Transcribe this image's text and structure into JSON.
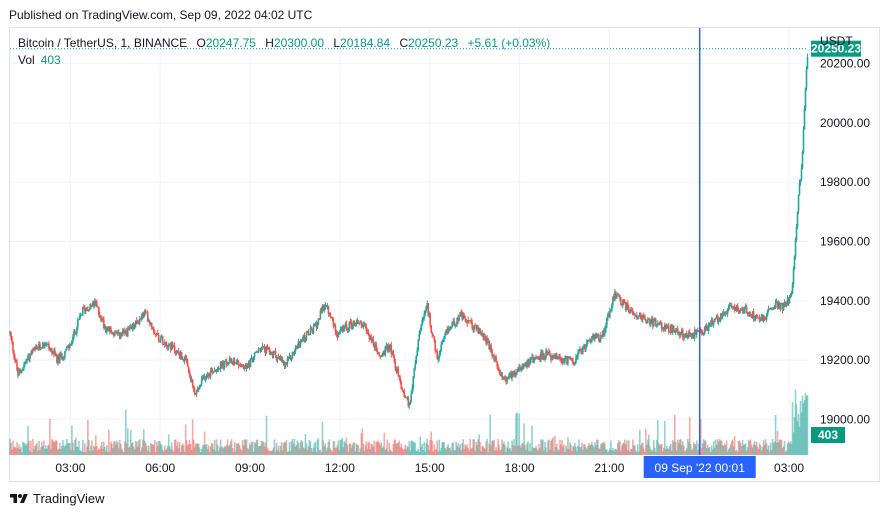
{
  "header": {
    "published": "Published on TradingView.com, Sep 09, 2022 04:02 UTC"
  },
  "legend": {
    "symbol": "Bitcoin / TetherUS, 1, BINANCE",
    "open_label": "O",
    "open": "20247.75",
    "high_label": "H",
    "high": "20300.00",
    "low_label": "L",
    "low": "20184.84",
    "close_label": "C",
    "close": "20250.23",
    "change": "+5.61 (+0.03%)",
    "vol_label": "Vol",
    "vol": "403"
  },
  "currency": "USDT",
  "footer": {
    "brand": "TradingView"
  },
  "colors": {
    "up": "#26a69a",
    "down": "#ef5350",
    "accent": "#089981",
    "crosshair": "#2962ff"
  },
  "chart_data": {
    "type": "candlestick",
    "title": "Bitcoin / TetherUS, 1, BINANCE",
    "ylim": [
      18880,
      20320
    ],
    "y_ticks": [
      19000,
      19200,
      19400,
      19600,
      19800,
      20000,
      20200
    ],
    "y_tick_labels": [
      "19000.00",
      "19200.00",
      "19400.00",
      "19600.00",
      "19800.00",
      "20000.00",
      "20200.00"
    ],
    "x_ticks": [
      {
        "label": "03:00",
        "minute": 180
      },
      {
        "label": "06:00",
        "minute": 360
      },
      {
        "label": "09:00",
        "minute": 540
      },
      {
        "label": "12:00",
        "minute": 720
      },
      {
        "label": "15:00",
        "minute": 900
      },
      {
        "label": "18:00",
        "minute": 1080
      },
      {
        "label": "21:00",
        "minute": 1260
      },
      {
        "label": "03:00",
        "minute": 1620
      }
    ],
    "x_range_minutes": [
      59,
      1658
    ],
    "last_price": 20250.23,
    "last_price_label": "20250.23",
    "last_volume_label": "403",
    "crosshair": {
      "minute": 1441,
      "label_date": "09 Sep '22",
      "label_time": "00:01"
    },
    "price_path": [
      [
        59,
        19290
      ],
      [
        75,
        19150
      ],
      [
        100,
        19220
      ],
      [
        130,
        19260
      ],
      [
        155,
        19200
      ],
      [
        180,
        19250
      ],
      [
        205,
        19370
      ],
      [
        230,
        19390
      ],
      [
        250,
        19310
      ],
      [
        275,
        19280
      ],
      [
        300,
        19300
      ],
      [
        330,
        19360
      ],
      [
        355,
        19280
      ],
      [
        380,
        19250
      ],
      [
        410,
        19200
      ],
      [
        430,
        19080
      ],
      [
        450,
        19150
      ],
      [
        480,
        19180
      ],
      [
        510,
        19200
      ],
      [
        530,
        19170
      ],
      [
        560,
        19240
      ],
      [
        590,
        19220
      ],
      [
        610,
        19180
      ],
      [
        640,
        19260
      ],
      [
        670,
        19310
      ],
      [
        690,
        19390
      ],
      [
        715,
        19290
      ],
      [
        740,
        19320
      ],
      [
        760,
        19330
      ],
      [
        780,
        19280
      ],
      [
        800,
        19210
      ],
      [
        820,
        19250
      ],
      [
        845,
        19100
      ],
      [
        860,
        19050
      ],
      [
        880,
        19300
      ],
      [
        895,
        19380
      ],
      [
        915,
        19200
      ],
      [
        935,
        19300
      ],
      [
        960,
        19350
      ],
      [
        990,
        19310
      ],
      [
        1010,
        19280
      ],
      [
        1030,
        19200
      ],
      [
        1050,
        19130
      ],
      [
        1075,
        19170
      ],
      [
        1100,
        19200
      ],
      [
        1130,
        19220
      ],
      [
        1160,
        19200
      ],
      [
        1190,
        19200
      ],
      [
        1220,
        19270
      ],
      [
        1245,
        19280
      ],
      [
        1270,
        19420
      ],
      [
        1300,
        19370
      ],
      [
        1330,
        19340
      ],
      [
        1360,
        19320
      ],
      [
        1390,
        19300
      ],
      [
        1420,
        19280
      ],
      [
        1450,
        19300
      ],
      [
        1470,
        19330
      ],
      [
        1490,
        19360
      ],
      [
        1510,
        19380
      ],
      [
        1530,
        19370
      ],
      [
        1550,
        19350
      ],
      [
        1570,
        19340
      ],
      [
        1590,
        19390
      ],
      [
        1610,
        19380
      ],
      [
        1625,
        19420
      ],
      [
        1630,
        19520
      ],
      [
        1635,
        19650
      ],
      [
        1640,
        19790
      ],
      [
        1645,
        19840
      ],
      [
        1650,
        20000
      ],
      [
        1655,
        20190
      ],
      [
        1658,
        20250
      ]
    ],
    "volume_max": 403
  }
}
